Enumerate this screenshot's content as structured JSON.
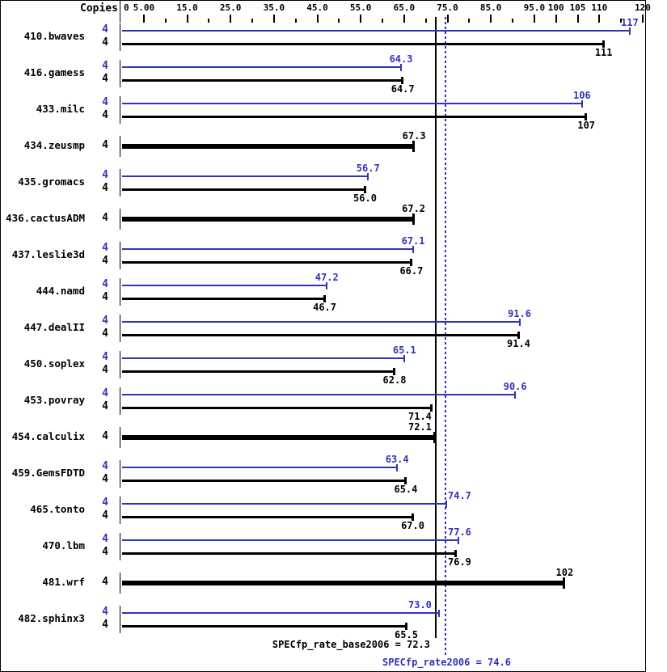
{
  "header": {
    "copies_label": "Copies"
  },
  "axis": {
    "zero_label": "0",
    "major_ticks": [
      {
        "value": 5,
        "label": "5.00"
      },
      {
        "value": 15,
        "label": "15.0"
      },
      {
        "value": 25,
        "label": "25.0"
      },
      {
        "value": 35,
        "label": "35.0"
      },
      {
        "value": 45,
        "label": "45.0"
      },
      {
        "value": 55,
        "label": "55.0"
      },
      {
        "value": 65,
        "label": "65.0"
      },
      {
        "value": 75,
        "label": "75.0"
      },
      {
        "value": 85,
        "label": "85.0"
      },
      {
        "value": 95,
        "label": "95.0"
      },
      {
        "value": 100,
        "label": "100"
      },
      {
        "value": 105,
        "label": "105"
      },
      {
        "value": 110,
        "label": "110"
      },
      {
        "value": 120,
        "label": "120"
      }
    ],
    "minor_ticks": [
      10,
      20,
      30,
      40,
      50,
      60,
      70,
      80,
      90,
      115
    ]
  },
  "chart_data": {
    "type": "bar",
    "orientation": "horizontal",
    "xlim": [
      0,
      120
    ],
    "series": [
      {
        "name": "peak (SPECfp_rate2006)",
        "color": "#3232b8"
      },
      {
        "name": "base (SPECfp_rate_base2006)",
        "color": "#000000"
      }
    ],
    "benchmarks": [
      {
        "name": "410.bwaves",
        "copies": 4,
        "peak": 117,
        "peak_label": "117",
        "base": 111,
        "base_label": "111"
      },
      {
        "name": "416.gamess",
        "copies": 4,
        "peak": 64.3,
        "peak_label": "64.3",
        "base": 64.7,
        "base_label": "64.7"
      },
      {
        "name": "433.milc",
        "copies": 4,
        "peak": 106,
        "peak_label": "106",
        "base": 107,
        "base_label": "107"
      },
      {
        "name": "434.zeusmp",
        "copies": 4,
        "base": 67.3,
        "base_label": "67.3",
        "base_only": true
      },
      {
        "name": "435.gromacs",
        "copies": 4,
        "peak": 56.7,
        "peak_label": "56.7",
        "base": 56.0,
        "base_label": "56.0"
      },
      {
        "name": "436.cactusADM",
        "copies": 4,
        "base": 67.2,
        "base_label": "67.2",
        "base_only": true
      },
      {
        "name": "437.leslie3d",
        "copies": 4,
        "peak": 67.1,
        "peak_label": "67.1",
        "base": 66.7,
        "base_label": "66.7"
      },
      {
        "name": "444.namd",
        "copies": 4,
        "peak": 47.2,
        "peak_label": "47.2",
        "base": 46.7,
        "base_label": "46.7"
      },
      {
        "name": "447.dealII",
        "copies": 4,
        "peak": 91.6,
        "peak_label": "91.6",
        "base": 91.4,
        "base_label": "91.4"
      },
      {
        "name": "450.soplex",
        "copies": 4,
        "peak": 65.1,
        "peak_label": "65.1",
        "base": 62.8,
        "base_label": "62.8"
      },
      {
        "name": "453.povray",
        "copies": 4,
        "peak": 90.6,
        "peak_label": "90.6",
        "base": 71.4,
        "base_label": "71.4"
      },
      {
        "name": "454.calculix",
        "copies": 4,
        "base": 72.1,
        "base_label": "72.1",
        "base_only": true
      },
      {
        "name": "459.GemsFDTD",
        "copies": 4,
        "peak": 63.4,
        "peak_label": "63.4",
        "base": 65.4,
        "base_label": "65.4"
      },
      {
        "name": "465.tonto",
        "copies": 4,
        "peak": 74.7,
        "peak_label": "74.7",
        "base": 67.0,
        "base_label": "67.0"
      },
      {
        "name": "470.lbm",
        "copies": 4,
        "peak": 77.6,
        "peak_label": "77.6",
        "base": 76.9,
        "base_label": "76.9"
      },
      {
        "name": "481.wrf",
        "copies": 4,
        "base": 102,
        "base_label": "102",
        "base_only": true
      },
      {
        "name": "482.sphinx3",
        "copies": 4,
        "peak": 73.0,
        "peak_label": "73.0",
        "base": 65.5,
        "base_label": "65.5"
      }
    ],
    "reference_lines": [
      {
        "name": "base_mean",
        "value": 72.3,
        "style": "solid",
        "color": "#000000"
      },
      {
        "name": "peak_mean",
        "value": 74.6,
        "style": "dotted",
        "color": "#3232b8"
      }
    ]
  },
  "footer": {
    "base_text": "SPECfp_rate_base2006 = 72.3",
    "peak_text": "SPECfp_rate2006 = 74.6"
  },
  "colors": {
    "peak_blue": "#3232b8",
    "base_black": "#000000",
    "background": "#ffffff"
  }
}
